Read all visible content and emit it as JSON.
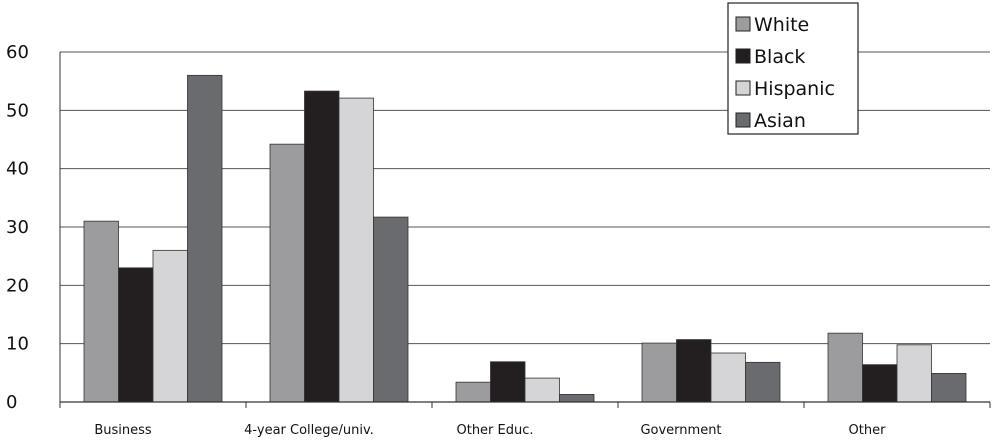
{
  "chart_data": {
    "type": "bar",
    "categories": [
      "Business",
      "4-year College/univ.",
      "Other Educ.",
      "Government",
      "Other"
    ],
    "series": [
      {
        "name": "White",
        "color": "#9c9c9e",
        "values": [
          31,
          44.2,
          3.4,
          10.1,
          11.8
        ]
      },
      {
        "name": "Black",
        "color": "#231f20",
        "values": [
          23,
          53.3,
          6.9,
          10.7,
          6.4
        ]
      },
      {
        "name": "Hispanic",
        "color": "#d5d5d7",
        "values": [
          26,
          52.1,
          4.1,
          8.4,
          9.8
        ]
      },
      {
        "name": "Asian",
        "color": "#6a6b6e",
        "values": [
          56,
          31.7,
          1.3,
          6.8,
          4.9
        ]
      }
    ],
    "ylim": [
      0,
      60
    ],
    "yticks": [
      0,
      10,
      20,
      30,
      40,
      50,
      60
    ],
    "title": "",
    "xlabel": "",
    "ylabel": "",
    "grid": true,
    "legend_position": "top-right"
  }
}
